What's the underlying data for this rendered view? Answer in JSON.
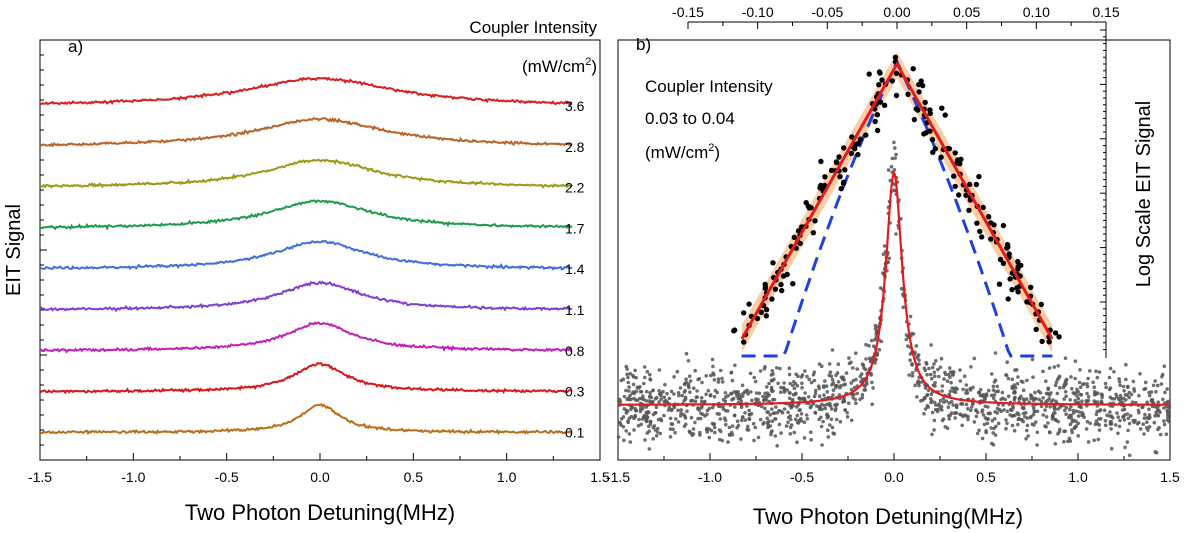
{
  "chart_data": [
    {
      "type": "line",
      "panel_label": "a)",
      "xlabel": "Two Photon Detuning(MHz)",
      "ylabel": "EIT Signal",
      "xlim": [
        -1.5,
        1.5
      ],
      "xticks": [
        "-1.5",
        "-1.0",
        "-0.5",
        "0.0",
        "0.5",
        "1.0",
        "1.5"
      ],
      "x_data_range": [
        -1.5,
        1.35
      ],
      "legend_title_line1": "Coupler Intensity",
      "legend_title_line2": "(mW/cm",
      "legend_title_sup": "2",
      "legend_title_close": ")",
      "grid": false,
      "series": [
        {
          "name": "3.6",
          "color": "#d42020",
          "center": 0.0,
          "width": 0.48,
          "amplitude": 0.55,
          "baseline_offset": 0.02
        },
        {
          "name": "2.8",
          "color": "#b8652a",
          "center": 0.0,
          "width": 0.42,
          "amplitude": 0.55,
          "baseline_offset": 0.0
        },
        {
          "name": "2.2",
          "color": "#9a9a1a",
          "center": 0.0,
          "width": 0.36,
          "amplitude": 0.55,
          "baseline_offset": 0.0
        },
        {
          "name": "1.7",
          "color": "#1f9a4a",
          "center": 0.0,
          "width": 0.33,
          "amplitude": 0.55,
          "baseline_offset": 0.0
        },
        {
          "name": "1.4",
          "color": "#3f6fd8",
          "center": 0.0,
          "width": 0.3,
          "amplitude": 0.55,
          "baseline_offset": 0.0
        },
        {
          "name": "1.1",
          "color": "#7f3fd0",
          "center": 0.0,
          "width": 0.26,
          "amplitude": 0.55,
          "baseline_offset": 0.0
        },
        {
          "name": "0.8",
          "color": "#c020b8",
          "center": 0.0,
          "width": 0.22,
          "amplitude": 0.55,
          "baseline_offset": 0.0
        },
        {
          "name": "0.3",
          "color": "#d41818",
          "center": 0.0,
          "width": 0.17,
          "amplitude": 0.55,
          "baseline_offset": 0.0
        },
        {
          "name": "0.1",
          "color": "#b86e1a",
          "center": 0.0,
          "width": 0.13,
          "amplitude": 0.55,
          "baseline_offset": 0.0
        }
      ]
    },
    {
      "type": "scatter",
      "panel_label": "b)",
      "xlabel": "Two Photon Detuning(MHz)",
      "xlim": [
        -1.5,
        1.5
      ],
      "xticks": [
        "-1.5",
        "-1.0",
        "-0.5",
        "0.0",
        "0.5",
        "1.0",
        "1.5"
      ],
      "grid": false,
      "main": {
        "points_color": "#555555",
        "fit_color": "#e41a1c",
        "fit_peak_x": 0.0,
        "fit_halfwidth": 0.055,
        "fit_baseline": 0.0,
        "fit_peak": 1.0,
        "data_x_range": [
          -1.5,
          1.5
        ]
      },
      "inset": {
        "ylabel": "Log Scale EIT Signal",
        "xlim": [
          -0.15,
          0.15
        ],
        "xticks": [
          "-0.15",
          "-0.10",
          "-0.05",
          "0.00",
          "0.05",
          "0.10",
          "0.15"
        ],
        "annotation_line1": "Coupler Intensity",
        "annotation_line2": "0.03 to 0.04",
        "annotation_line3": "(mW/cm",
        "annotation_sup": "2",
        "annotation_close": ")",
        "points_color": "#000000",
        "linear_fit_color": "#e41a1c",
        "band_color": "#f6a55a",
        "dashed_fit_color": "#1f3fe0",
        "data_x_range": [
          -0.12,
          0.12
        ]
      }
    }
  ]
}
